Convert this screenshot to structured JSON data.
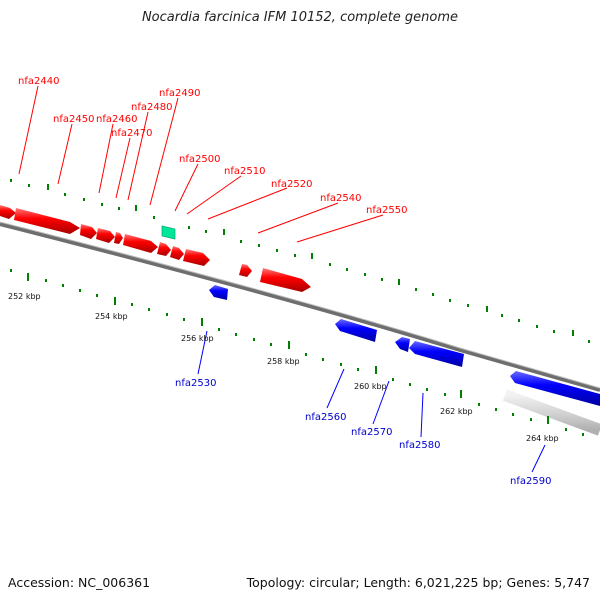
{
  "title": "Nocardia farcinica IFM 10152, complete genome",
  "footer": {
    "accession": "Accession: NC_006361",
    "summary": "Topology: circular; Length: 6,021,225 bp; Genes: 5,747"
  },
  "colors": {
    "forward_gene": "#ff0000",
    "reverse_gene": "#0000ff",
    "rna_gene": "#00ff99",
    "tick": "#008000",
    "backbone": "#808080"
  },
  "forward_labels": [
    "nfa2440",
    "nfa2450",
    "nfa2460",
    "nfa2470",
    "nfa2480",
    "nfa2490",
    "nfa2500",
    "nfa2510",
    "nfa2520",
    "nfa2540",
    "nfa2550"
  ],
  "reverse_labels": [
    "nfa2530",
    "nfa2560",
    "nfa2570",
    "nfa2580",
    "nfa2590"
  ],
  "scale_labels": [
    "252 kbp",
    "254 kbp",
    "256 kbp",
    "258 kbp",
    "260 kbp",
    "262 kbp",
    "264 kbp"
  ]
}
